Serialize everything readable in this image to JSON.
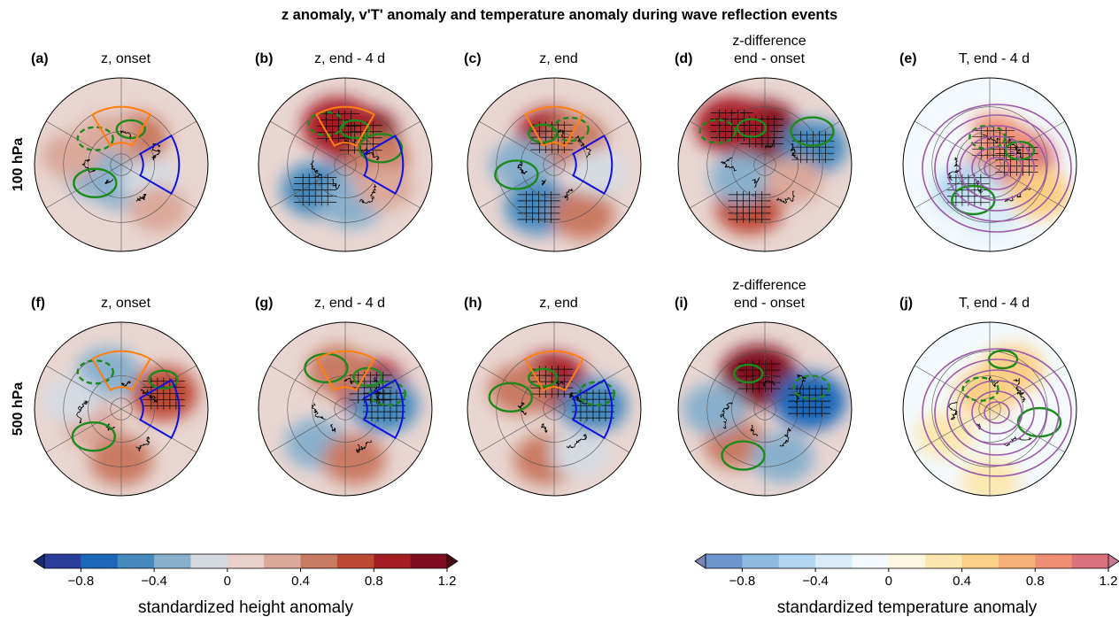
{
  "chart_data": {
    "type": "heatmap",
    "projection": "north polar stereographic",
    "title": "z anomaly, v'T' anomaly and temperature anomaly during wave reflection events",
    "rows": [
      {
        "label": "100 hPa"
      },
      {
        "label": "500 hPa"
      }
    ],
    "panels": [
      {
        "tag": "(a)",
        "title": "z, onset",
        "level": "100 hPa",
        "field": "z",
        "anomalies": [
          {
            "lon": 150,
            "lat": 62,
            "value": 0.4
          },
          {
            "lon": -150,
            "lat": 62,
            "value": 0.2
          },
          {
            "lon": -70,
            "lat": 66,
            "value": -0.4
          },
          {
            "lon": 0,
            "lat": 72,
            "value": -0.4
          },
          {
            "lon": 60,
            "lat": 60,
            "value": -0.2
          },
          {
            "lon": 40,
            "lat": 40,
            "value": 0.2
          },
          {
            "lon": -100,
            "lat": 45,
            "value": 0.2
          }
        ]
      },
      {
        "tag": "(b)",
        "title": "z, end - 4 d",
        "level": "100 hPa",
        "field": "z",
        "anomalies": [
          {
            "lon": 150,
            "lat": 62,
            "value": 1.0
          },
          {
            "lon": -170,
            "lat": 55,
            "value": 0.8
          },
          {
            "lon": 100,
            "lat": 60,
            "value": 0.4
          },
          {
            "lon": -50,
            "lat": 55,
            "value": -0.6
          },
          {
            "lon": 10,
            "lat": 55,
            "value": -0.4
          },
          {
            "lon": 60,
            "lat": 50,
            "value": 0.2
          }
        ]
      },
      {
        "tag": "(c)",
        "title": "z, end",
        "level": "100 hPa",
        "field": "z",
        "anomalies": [
          {
            "lon": -175,
            "lat": 65,
            "value": 0.8
          },
          {
            "lon": 140,
            "lat": 60,
            "value": 0.4
          },
          {
            "lon": -90,
            "lat": 60,
            "value": -0.4
          },
          {
            "lon": -20,
            "lat": 50,
            "value": -0.6
          },
          {
            "lon": 30,
            "lat": 40,
            "value": 0.4
          },
          {
            "lon": 80,
            "lat": 50,
            "value": -0.2
          }
        ]
      },
      {
        "tag": "(d)",
        "title": "end - onset",
        "supertitle": "z-difference",
        "level": "100 hPa",
        "field": "z",
        "anomalies": [
          {
            "lon": -175,
            "lat": 60,
            "value": 1.0
          },
          {
            "lon": -140,
            "lat": 45,
            "value": 0.8
          },
          {
            "lon": 110,
            "lat": 45,
            "value": -0.6
          },
          {
            "lon": -20,
            "lat": 50,
            "value": 0.6
          },
          {
            "lon": -60,
            "lat": 65,
            "value": -0.4
          },
          {
            "lon": 60,
            "lat": 60,
            "value": 0.2
          }
        ]
      },
      {
        "tag": "(e)",
        "title": "T, end - 4 d",
        "level": "100 hPa",
        "field": "T",
        "anomalies": [
          {
            "lon": 100,
            "lat": 65,
            "value": 1.0
          },
          {
            "lon": 170,
            "lat": 70,
            "value": 0.8
          },
          {
            "lon": -40,
            "lat": 60,
            "value": -0.6
          },
          {
            "lon": 0,
            "lat": 50,
            "value": -0.4
          },
          {
            "lon": -120,
            "lat": 45,
            "value": -0.2
          },
          {
            "lon": 60,
            "lat": 40,
            "value": 0.4
          }
        ]
      },
      {
        "tag": "(f)",
        "title": "z, onset",
        "level": "500 hPa",
        "field": "z",
        "anomalies": [
          {
            "lon": 110,
            "lat": 50,
            "value": 0.6
          },
          {
            "lon": -160,
            "lat": 55,
            "value": -0.4
          },
          {
            "lon": -60,
            "lat": 60,
            "value": 0.2
          },
          {
            "lon": 0,
            "lat": 45,
            "value": 0.4
          },
          {
            "lon": -100,
            "lat": 45,
            "value": -0.2
          }
        ]
      },
      {
        "tag": "(g)",
        "title": "z, end - 4 d",
        "level": "500 hPa",
        "field": "z",
        "anomalies": [
          {
            "lon": 130,
            "lat": 60,
            "value": 0.8
          },
          {
            "lon": 95,
            "lat": 55,
            "value": -0.6
          },
          {
            "lon": -170,
            "lat": 55,
            "value": 0.4
          },
          {
            "lon": -40,
            "lat": 50,
            "value": -0.4
          },
          {
            "lon": 10,
            "lat": 45,
            "value": 0.4
          }
        ]
      },
      {
        "tag": "(h)",
        "title": "z, end",
        "level": "500 hPa",
        "field": "z",
        "anomalies": [
          {
            "lon": -175,
            "lat": 65,
            "value": 0.8
          },
          {
            "lon": 95,
            "lat": 55,
            "value": -0.6
          },
          {
            "lon": -120,
            "lat": 55,
            "value": 0.4
          },
          {
            "lon": -10,
            "lat": 45,
            "value": 0.4
          },
          {
            "lon": 30,
            "lat": 45,
            "value": -0.2
          }
        ]
      },
      {
        "tag": "(i)",
        "title": "end - onset",
        "supertitle": "z-difference",
        "level": "500 hPa",
        "field": "z",
        "anomalies": [
          {
            "lon": -170,
            "lat": 60,
            "value": 1.0
          },
          {
            "lon": 100,
            "lat": 50,
            "value": -0.8
          },
          {
            "lon": -40,
            "lat": 50,
            "value": 0.4
          },
          {
            "lon": 20,
            "lat": 45,
            "value": -0.4
          },
          {
            "lon": -90,
            "lat": 45,
            "value": -0.4
          }
        ]
      },
      {
        "tag": "(j)",
        "title": "T, end - 4 d",
        "level": "500 hPa",
        "field": "T",
        "anomalies": [
          {
            "lon": 150,
            "lat": 50,
            "value": 0.4
          },
          {
            "lon": -170,
            "lat": 75,
            "value": 0.4
          },
          {
            "lon": 60,
            "lat": 50,
            "value": -0.2
          },
          {
            "lon": -60,
            "lat": 45,
            "value": 0.2
          },
          {
            "lon": 0,
            "lat": 30,
            "value": 0.2
          }
        ]
      }
    ],
    "boxes": {
      "blue": {
        "lon_min": 60,
        "lon_max": 120,
        "lat_min": 40,
        "lat_max": 70,
        "color": "#1010e0"
      },
      "orange": {
        "lon_min": 150,
        "lon_max": -150,
        "lat_min": 40,
        "lat_max": 70,
        "color": "#ff7f0e"
      }
    },
    "colorbars": [
      {
        "label": "standardized height anomaly",
        "ticks": [
          "−0.8",
          "−0.4",
          "0",
          "0.4",
          "0.8",
          "1.2"
        ],
        "tick_values": [
          -0.8,
          -0.4,
          0,
          0.4,
          0.8,
          1.2
        ],
        "range": [
          -1.1,
          1.3
        ],
        "extend": "both",
        "colors": [
          "#1b2a6b",
          "#2b3f9a",
          "#1c67b9",
          "#4589bd",
          "#88b0cd",
          "#d6dbe2",
          "#ead0ca",
          "#dba89a",
          "#c97a62",
          "#bd4a35",
          "#a61e25",
          "#7f0c1f",
          "#4b0713"
        ]
      },
      {
        "label": "standardized temperature anomaly",
        "ticks": [
          "−0.8",
          "−0.4",
          "0",
          "0.4",
          "0.8",
          "1.2"
        ],
        "tick_values": [
          -0.8,
          -0.4,
          0,
          0.4,
          0.8,
          1.2
        ],
        "range": [
          -1.1,
          1.3
        ],
        "extend": "both",
        "colors": [
          "#7c85b8",
          "#6f96cc",
          "#8fb9e1",
          "#b3d6f0",
          "#d9ecf7",
          "#f3f9fc",
          "#fdf6e0",
          "#fde7b0",
          "#fccf86",
          "#f6b176",
          "#ef8f75",
          "#d9727c",
          "#c9788f"
        ]
      }
    ]
  }
}
